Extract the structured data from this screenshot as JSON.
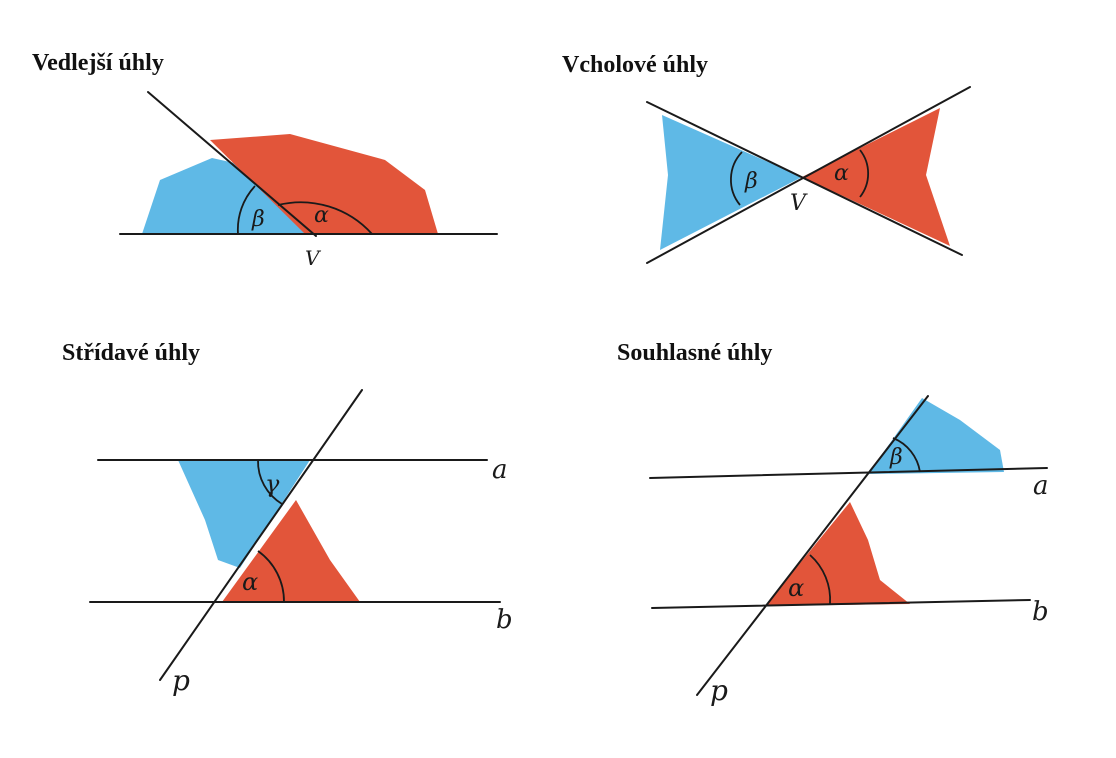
{
  "colors": {
    "red": "#e2553a",
    "blue": "#5fb9e6",
    "ink": "#1a1a1a"
  },
  "panels": [
    {
      "title": "Vedlejší úhly",
      "labels": {
        "alpha": "α",
        "beta": "β",
        "vertex": "V"
      }
    },
    {
      "title": "Vcholové úhly",
      "labels": {
        "alpha": "α",
        "beta": "β",
        "vertex": "V"
      }
    },
    {
      "title": "Střídavé úhly",
      "labels": {
        "alpha": "α",
        "gamma": "γ",
        "a": "a",
        "b": "b",
        "p": "p"
      }
    },
    {
      "title": "Souhlasné úhly",
      "labels": {
        "alpha": "α",
        "beta": "β",
        "a": "a",
        "b": "b",
        "p": "p"
      }
    }
  ]
}
